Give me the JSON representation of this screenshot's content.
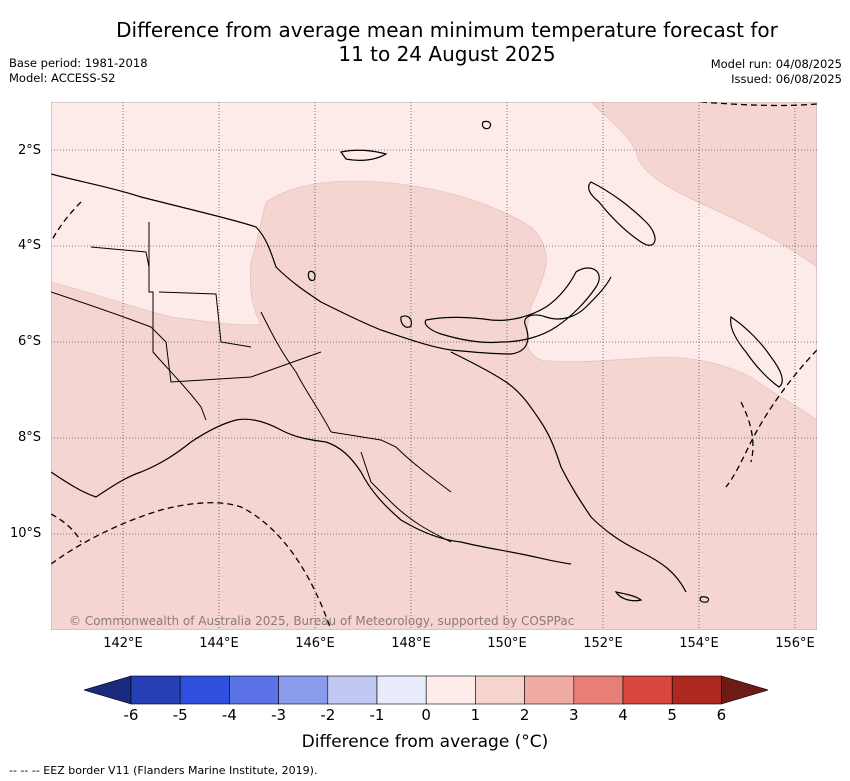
{
  "title_line1": "Difference from average mean minimum temperature forecast for",
  "title_line2": "11 to 24 August 2025",
  "base_period": "Base period: 1981-2018",
  "model": "Model: ACCESS-S2",
  "model_run": "Model run: 04/08/2025",
  "issued": "Issued: 06/08/2025",
  "copyright": "© Commonwealth of Australia 2025, Bureau of Meteorology, supported by COSPPac",
  "lat_labels": [
    "2°S",
    "4°S",
    "6°S",
    "8°S",
    "10°S"
  ],
  "lon_labels": [
    "142°E",
    "144°E",
    "146°E",
    "148°E",
    "150°E",
    "152°E",
    "154°E",
    "156°E"
  ],
  "colorbar": {
    "ticks": [
      "-6",
      "-5",
      "-4",
      "-3",
      "-2",
      "-1",
      "0",
      "1",
      "2",
      "3",
      "4",
      "5",
      "6"
    ],
    "colors": [
      "#1a2a7c",
      "#2540b5",
      "#2f4fde",
      "#5b72e6",
      "#8a9bec",
      "#c1c8f3",
      "#e8ebfa",
      "#fdecea",
      "#f5d4d0",
      "#efaaa3",
      "#e77f76",
      "#d9473e",
      "#ad2820",
      "#6e1a16"
    ],
    "title": "Difference from average (°C)"
  },
  "legend_footer": "--  --  -- EEZ border V11 (Flanders Marine Institute, 2019).",
  "colors": {
    "zone_0_1": "#fcebe9",
    "zone_1_2": "#f5d5d1"
  }
}
